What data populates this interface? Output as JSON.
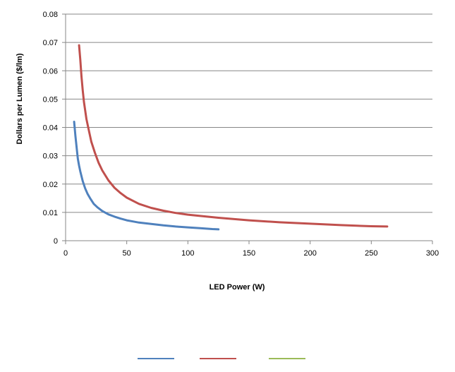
{
  "chart_data": {
    "type": "line",
    "title": "",
    "xlabel": "LED Power (W)",
    "ylabel": "Dollars per Lumen ($/lm)",
    "xlim": [
      0,
      300
    ],
    "ylim": [
      0,
      0.08
    ],
    "x_ticks": [
      "0",
      "50",
      "100",
      "150",
      "200",
      "250",
      "300"
    ],
    "y_ticks": [
      "0",
      "0.01",
      "0.02",
      "0.03",
      "0.04",
      "0.05",
      "0.06",
      "0.07",
      "0.08"
    ],
    "grid": "horizontal",
    "legend_position": "bottom",
    "series": [
      {
        "name": "",
        "color": "#4F81BD",
        "x": [
          7,
          8,
          9,
          10,
          11,
          12,
          14,
          16,
          18,
          20,
          23,
          26,
          30,
          35,
          40,
          45,
          50,
          55,
          60,
          70,
          80,
          90,
          100,
          110,
          120,
          125
        ],
        "y": [
          0.042,
          0.037,
          0.033,
          0.029,
          0.0265,
          0.0245,
          0.021,
          0.0185,
          0.0165,
          0.015,
          0.013,
          0.0118,
          0.0105,
          0.0093,
          0.0085,
          0.0078,
          0.0072,
          0.0068,
          0.0064,
          0.0059,
          0.0054,
          0.005,
          0.0047,
          0.0044,
          0.0041,
          0.004
        ]
      },
      {
        "name": "",
        "color": "#C0504D",
        "x": [
          11,
          12,
          13,
          14,
          15,
          17,
          19,
          21,
          24,
          27,
          30,
          35,
          40,
          45,
          50,
          60,
          70,
          80,
          90,
          100,
          125,
          150,
          175,
          200,
          225,
          250,
          263
        ],
        "y": [
          0.069,
          0.064,
          0.058,
          0.053,
          0.049,
          0.043,
          0.039,
          0.035,
          0.031,
          0.0275,
          0.0248,
          0.0213,
          0.0187,
          0.0168,
          0.0152,
          0.013,
          0.0116,
          0.0106,
          0.0098,
          0.0092,
          0.0081,
          0.0072,
          0.0065,
          0.006,
          0.0055,
          0.0051,
          0.005
        ]
      },
      {
        "name": "",
        "color": "#9BBB59",
        "x": [],
        "y": []
      }
    ]
  }
}
